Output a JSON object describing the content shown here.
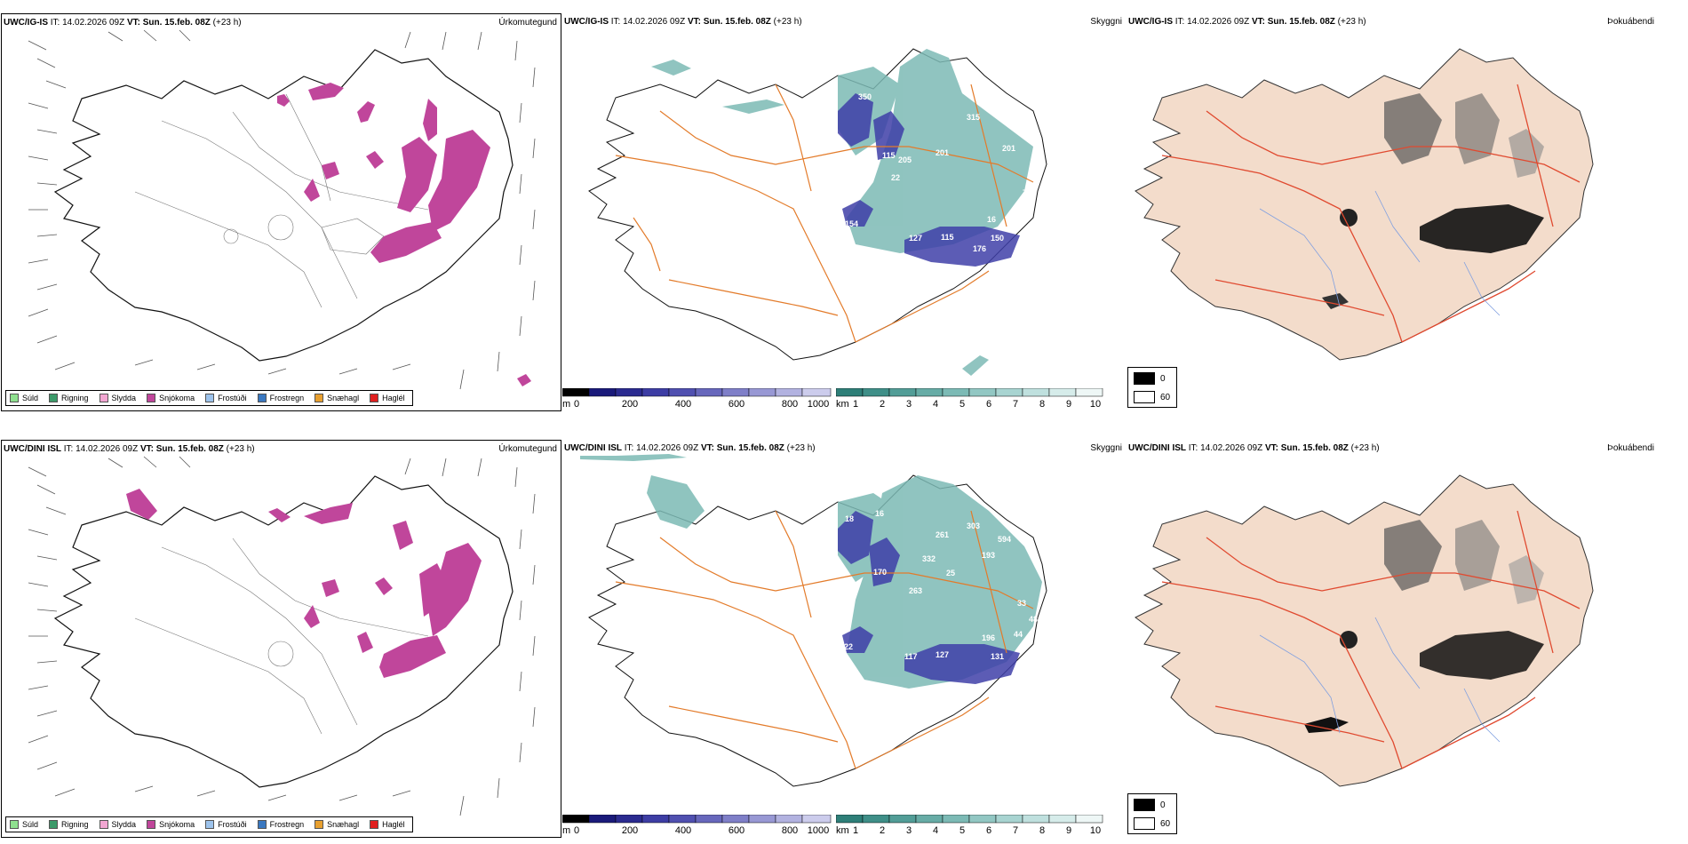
{
  "colors": {
    "precip_snow": "#c0469b",
    "visibility_teal": "#4d9f98",
    "ceiling_blue": "#3f3fa8",
    "roads": "#e37b2a",
    "land_fill": "#f3dccb",
    "red_roads": "#e04a30",
    "rivers": "#7f9fe0"
  },
  "common": {
    "issue_time": "IT: 14.02.2026 09Z",
    "valid_time": "VT: Sun. 15.feb. 08Z",
    "lead": "(+23 h)"
  },
  "rows": [
    {
      "model": "UWC/IG-IS",
      "panels": {
        "precip": {
          "label": "Úrkomutegund"
        },
        "visibility": {
          "label": "Skyggni",
          "values": [
            "350",
            "315",
            "201",
            "201",
            "114",
            "115",
            "205",
            "22",
            "154",
            "127",
            "115",
            "176",
            "150",
            "16",
            "71",
            "48",
            "48"
          ]
        },
        "fog": {
          "label": "Þokuábendi"
        }
      }
    },
    {
      "model": "UWC/DINI ISL",
      "panels": {
        "precip": {
          "label": "Úrkomutegund"
        },
        "visibility": {
          "label": "Skyggni",
          "values": [
            "18",
            "16",
            "261",
            "303",
            "594",
            "332",
            "193",
            "25",
            "263",
            "170",
            "222",
            "117",
            "127",
            "196",
            "131",
            "33",
            "48",
            "44"
          ]
        },
        "fog": {
          "label": "Þokuábendi"
        }
      }
    }
  ],
  "precip_legend": [
    {
      "label": "Súld",
      "color": "#8fe08f"
    },
    {
      "label": "Rigning",
      "color": "#3c9a6a"
    },
    {
      "label": "Slydda",
      "color": "#f2a6d2"
    },
    {
      "label": "Snjókoma",
      "color": "#c0469b"
    },
    {
      "label": "Frostúði",
      "color": "#9dc3ec"
    },
    {
      "label": "Frostregn",
      "color": "#3a78c0"
    },
    {
      "label": "Snæhagl",
      "color": "#e8a030"
    },
    {
      "label": "Haglél",
      "color": "#e02020"
    }
  ],
  "ceiling_colorbar": {
    "unit": "m",
    "ticks": [
      "0",
      "200",
      "400",
      "600",
      "800",
      "1000"
    ],
    "colors": [
      "#000000",
      "#1a1a7a",
      "#2b2b90",
      "#3d3da4",
      "#5050b0",
      "#6767bc",
      "#7f7fc8",
      "#9898d4",
      "#b2b2e0",
      "#ccccec"
    ]
  },
  "visibility_colorbar": {
    "unit": "km",
    "ticks": [
      "1",
      "2",
      "3",
      "4",
      "5",
      "6",
      "7",
      "8",
      "9",
      "10"
    ],
    "colors": [
      "#2e7f78",
      "#3f8f88",
      "#529d97",
      "#67aca6",
      "#7cbab5",
      "#92c7c3",
      "#a8d4d1",
      "#bfe0de",
      "#d6ecea",
      "#eef7f6"
    ]
  },
  "fog_legend": [
    {
      "value": "0",
      "color": "#000000"
    },
    {
      "value": "60",
      "color": "#ffffff"
    }
  ]
}
